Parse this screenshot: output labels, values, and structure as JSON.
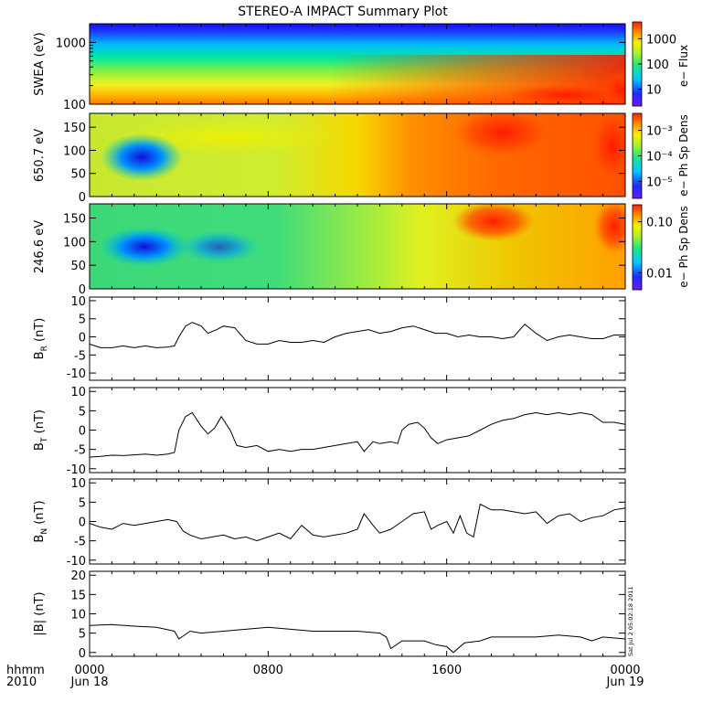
{
  "chart_data": {
    "type": "stacked-timeseries",
    "title": "STEREO-A IMPACT Summary Plot",
    "x_labels": {
      "corner_top": "hhmm",
      "corner_bottom": "2010",
      "ticks": [
        {
          "hhmm": "0000",
          "date": "Jun 18"
        },
        {
          "hhmm": "0800",
          "date": ""
        },
        {
          "hhmm": "1600",
          "date": ""
        },
        {
          "hhmm": "0000",
          "date": "Jun 19"
        }
      ]
    },
    "xlim_hours": [
      0,
      24
    ],
    "stamp_line1": "Sat Jul  2 05:02:18 2011",
    "stamp_line2": "",
    "spectrograms": [
      {
        "ylabel": "SWEA (eV)",
        "yscale": "log",
        "ylim": [
          100,
          2000
        ],
        "yticks": [
          "1000",
          "100"
        ],
        "cbar_label": "e− Flux",
        "cbar_ticks": [
          "1000",
          "100",
          "10"
        ]
      },
      {
        "ylabel": "650.7 eV",
        "yscale": "linear",
        "ylim": [
          0,
          180
        ],
        "yticks": [
          "150",
          "100",
          "50",
          "0"
        ],
        "cbar_label": "e− Ph Sp Dens",
        "cbar_ticks": [
          "10⁻³",
          "10⁻⁴",
          "10⁻⁵"
        ]
      },
      {
        "ylabel": "246.6 eV",
        "yscale": "linear",
        "ylim": [
          0,
          180
        ],
        "yticks": [
          "150",
          "100",
          "50",
          "0"
        ],
        "cbar_label": "e− Ph Sp Dens",
        "cbar_ticks": [
          "0.10",
          "0.01"
        ]
      }
    ],
    "lineplots": [
      {
        "ylabel": "B",
        "ylabel_sub": "R",
        "ylabel_unit": "(nT)",
        "ylim": [
          -12,
          11
        ],
        "yticks": [
          10,
          5,
          0,
          -5,
          -10
        ],
        "series": [
          [
            0,
            -2
          ],
          [
            0.5,
            -3
          ],
          [
            1,
            -3
          ],
          [
            1.5,
            -2.5
          ],
          [
            2,
            -3
          ],
          [
            2.5,
            -2.5
          ],
          [
            3,
            -3
          ],
          [
            3.5,
            -2.8
          ],
          [
            3.8,
            -2.5
          ],
          [
            4,
            0
          ],
          [
            4.3,
            3
          ],
          [
            4.6,
            4
          ],
          [
            5,
            3
          ],
          [
            5.3,
            1
          ],
          [
            5.7,
            2
          ],
          [
            6,
            3
          ],
          [
            6.5,
            2.5
          ],
          [
            7,
            -1
          ],
          [
            7.5,
            -2
          ],
          [
            8,
            -2
          ],
          [
            8.5,
            -1
          ],
          [
            9,
            -1.5
          ],
          [
            9.5,
            -1.5
          ],
          [
            10,
            -1
          ],
          [
            10.5,
            -1.5
          ],
          [
            11,
            0
          ],
          [
            11.5,
            1
          ],
          [
            12,
            1.5
          ],
          [
            12.5,
            2
          ],
          [
            13,
            1
          ],
          [
            13.5,
            1.5
          ],
          [
            14,
            2.5
          ],
          [
            14.5,
            3
          ],
          [
            15,
            2
          ],
          [
            15.5,
            1
          ],
          [
            16,
            1
          ],
          [
            16.5,
            0
          ],
          [
            17,
            0.5
          ],
          [
            17.5,
            0
          ],
          [
            18,
            0
          ],
          [
            18.5,
            -0.5
          ],
          [
            19,
            0
          ],
          [
            19.5,
            3.5
          ],
          [
            20,
            1
          ],
          [
            20.5,
            -1
          ],
          [
            21,
            0
          ],
          [
            21.5,
            0.5
          ],
          [
            22,
            0
          ],
          [
            22.5,
            -0.5
          ],
          [
            23,
            -0.5
          ],
          [
            23.5,
            0.5
          ],
          [
            24,
            0.5
          ]
        ]
      },
      {
        "ylabel": "B",
        "ylabel_sub": "T",
        "ylabel_unit": "(nT)",
        "ylim": [
          -11,
          11
        ],
        "yticks": [
          10,
          5,
          0,
          -5,
          -10
        ],
        "series": [
          [
            0,
            -7
          ],
          [
            0.5,
            -6.8
          ],
          [
            1,
            -6.5
          ],
          [
            1.5,
            -6.6
          ],
          [
            2,
            -6.4
          ],
          [
            2.5,
            -6.2
          ],
          [
            3,
            -6.5
          ],
          [
            3.5,
            -6.2
          ],
          [
            3.8,
            -5.8
          ],
          [
            4,
            0
          ],
          [
            4.3,
            3.5
          ],
          [
            4.6,
            4.5
          ],
          [
            5,
            1
          ],
          [
            5.3,
            -1
          ],
          [
            5.6,
            0.5
          ],
          [
            5.9,
            3.5
          ],
          [
            6.3,
            0
          ],
          [
            6.6,
            -4
          ],
          [
            7,
            -4.5
          ],
          [
            7.5,
            -4
          ],
          [
            8,
            -5.5
          ],
          [
            8.5,
            -5
          ],
          [
            9,
            -5.5
          ],
          [
            9.5,
            -5
          ],
          [
            10,
            -5
          ],
          [
            10.5,
            -4.5
          ],
          [
            11,
            -4
          ],
          [
            11.5,
            -3.5
          ],
          [
            12,
            -3
          ],
          [
            12.3,
            -5.5
          ],
          [
            12.7,
            -3
          ],
          [
            13,
            -3.5
          ],
          [
            13.5,
            -3
          ],
          [
            13.8,
            -3.5
          ],
          [
            14,
            0
          ],
          [
            14.3,
            1.5
          ],
          [
            14.7,
            2
          ],
          [
            15,
            0.5
          ],
          [
            15.3,
            -2
          ],
          [
            15.6,
            -3.5
          ],
          [
            16,
            -2.5
          ],
          [
            16.5,
            -2
          ],
          [
            17,
            -1.5
          ],
          [
            17.5,
            0
          ],
          [
            18,
            1.5
          ],
          [
            18.5,
            2.5
          ],
          [
            19,
            3
          ],
          [
            19.5,
            4
          ],
          [
            20,
            4.5
          ],
          [
            20.5,
            4
          ],
          [
            21,
            4.5
          ],
          [
            21.5,
            4
          ],
          [
            22,
            4.5
          ],
          [
            22.5,
            4
          ],
          [
            23,
            2
          ],
          [
            23.5,
            2
          ],
          [
            24,
            1.5
          ]
        ]
      },
      {
        "ylabel": "B",
        "ylabel_sub": "N",
        "ylabel_unit": "(nT)",
        "ylim": [
          -11,
          11
        ],
        "yticks": [
          10,
          5,
          0,
          -5,
          -10
        ],
        "series": [
          [
            0,
            -0.5
          ],
          [
            0.5,
            -1.5
          ],
          [
            1,
            -2
          ],
          [
            1.5,
            -0.5
          ],
          [
            2,
            -1
          ],
          [
            2.5,
            -0.5
          ],
          [
            3,
            0
          ],
          [
            3.5,
            0.5
          ],
          [
            3.9,
            0
          ],
          [
            4.2,
            -2.5
          ],
          [
            4.5,
            -3.5
          ],
          [
            5,
            -4.5
          ],
          [
            5.5,
            -4
          ],
          [
            6,
            -3.5
          ],
          [
            6.5,
            -4.5
          ],
          [
            7,
            -4
          ],
          [
            7.5,
            -5
          ],
          [
            8,
            -4
          ],
          [
            8.5,
            -3
          ],
          [
            9,
            -4.5
          ],
          [
            9.5,
            -1
          ],
          [
            10,
            -3.5
          ],
          [
            10.5,
            -4
          ],
          [
            11,
            -3.5
          ],
          [
            11.5,
            -3
          ],
          [
            12,
            -2
          ],
          [
            12.3,
            2
          ],
          [
            12.7,
            -1
          ],
          [
            13,
            -3
          ],
          [
            13.5,
            -2
          ],
          [
            14,
            0
          ],
          [
            14.5,
            2
          ],
          [
            15,
            2.5
          ],
          [
            15.3,
            -2
          ],
          [
            15.6,
            -1
          ],
          [
            16,
            0
          ],
          [
            16.3,
            -3
          ],
          [
            16.6,
            1.5
          ],
          [
            16.9,
            -3
          ],
          [
            17.2,
            -4
          ],
          [
            17.5,
            4.5
          ],
          [
            18,
            3
          ],
          [
            18.5,
            3
          ],
          [
            19,
            2.5
          ],
          [
            19.5,
            2
          ],
          [
            20,
            2.5
          ],
          [
            20.5,
            -0.5
          ],
          [
            21,
            1.5
          ],
          [
            21.5,
            2
          ],
          [
            22,
            0
          ],
          [
            22.5,
            1
          ],
          [
            23,
            1.5
          ],
          [
            23.5,
            3
          ],
          [
            24,
            3.5
          ]
        ]
      },
      {
        "ylabel": "|B|",
        "ylabel_sub": "",
        "ylabel_unit": "(nT)",
        "ylim": [
          -1,
          21
        ],
        "yticks": [
          20,
          15,
          10,
          5,
          0
        ],
        "series": [
          [
            0,
            7
          ],
          [
            1,
            7.2
          ],
          [
            2,
            6.8
          ],
          [
            3,
            6.5
          ],
          [
            3.8,
            5.5
          ],
          [
            4,
            3.5
          ],
          [
            4.5,
            5.5
          ],
          [
            5,
            5
          ],
          [
            6,
            5.5
          ],
          [
            7,
            6
          ],
          [
            8,
            6.5
          ],
          [
            9,
            6
          ],
          [
            10,
            5.5
          ],
          [
            11,
            5.5
          ],
          [
            12,
            5.5
          ],
          [
            13,
            5
          ],
          [
            13.3,
            4
          ],
          [
            13.5,
            1
          ],
          [
            14,
            3
          ],
          [
            15,
            3
          ],
          [
            15.5,
            2
          ],
          [
            16,
            1.5
          ],
          [
            16.3,
            0
          ],
          [
            16.8,
            2.5
          ],
          [
            17.5,
            3
          ],
          [
            18,
            4
          ],
          [
            19,
            4
          ],
          [
            20,
            4
          ],
          [
            21,
            4.5
          ],
          [
            22,
            4
          ],
          [
            22.5,
            3
          ],
          [
            23,
            4
          ],
          [
            24,
            3.5
          ]
        ]
      }
    ]
  }
}
